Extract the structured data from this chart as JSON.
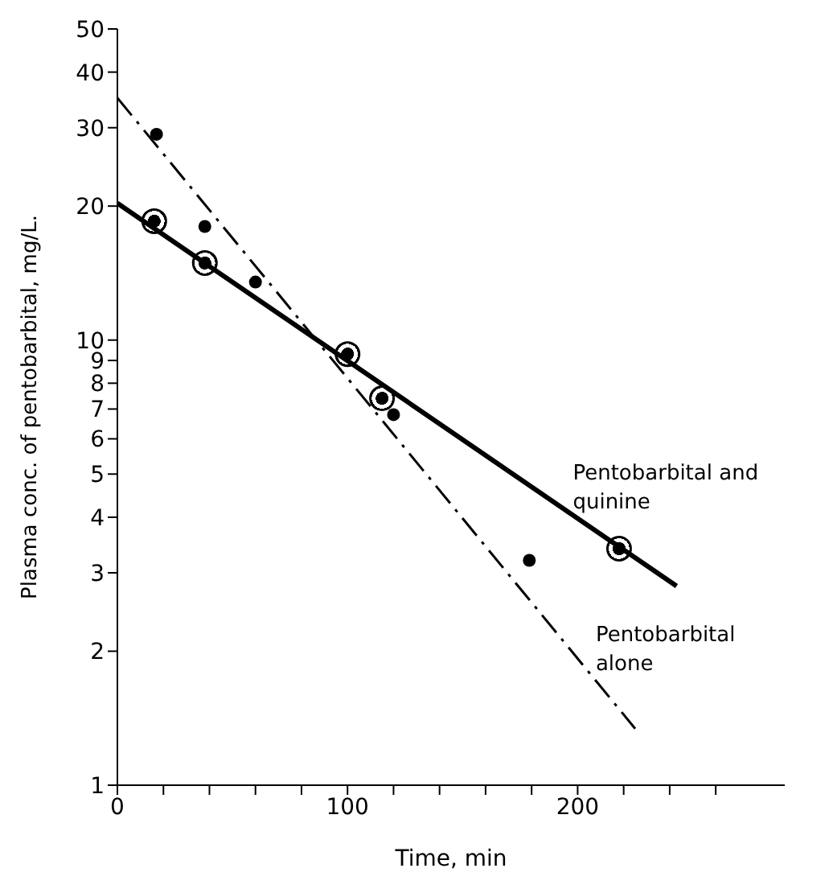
{
  "chart_data": {
    "type": "scatter",
    "xlabel": "Time, min",
    "ylabel": "Plasma conc. of pentobarbital, mg/L.",
    "xlim": [
      0,
      290
    ],
    "ylim": [
      1,
      50
    ],
    "log": "y",
    "xticks": [
      0,
      {
        "value": 20,
        "label": null
      },
      {
        "value": 40,
        "label": null
      },
      {
        "value": 60,
        "label": null
      },
      {
        "value": 80,
        "label": null
      },
      100,
      {
        "value": 120,
        "label": null
      },
      {
        "value": 140,
        "label": null
      },
      {
        "value": 160,
        "label": null
      },
      {
        "value": 180,
        "label": null
      },
      200,
      {
        "value": 220,
        "label": null
      },
      {
        "value": 240,
        "label": null
      },
      {
        "value": 260,
        "label": null
      }
    ],
    "yticks": [
      1,
      2,
      3,
      4,
      5,
      6,
      7,
      8,
      9,
      10,
      20,
      30,
      40,
      50
    ],
    "marker": "circle",
    "series": [
      {
        "color": "#000000",
        "x": [
          16,
          38,
          100,
          115,
          218
        ],
        "values": [
          18.5,
          14.9,
          9.3,
          7.4,
          3.4
        ]
      },
      {
        "color": "#000000",
        "x": [
          17,
          38,
          60,
          120,
          179
        ],
        "values": [
          29,
          18,
          13.5,
          6.8,
          3.2
        ]
      },
      {
        "type": "line",
        "name": "Pentobarbital and quinine",
        "color": "#000000",
        "line_style": "solid",
        "marker": "none",
        "x": [
          0,
          243
        ],
        "values": [
          20.3,
          2.8
        ]
      },
      {
        "type": "line",
        "name": "Pentobarbital alone",
        "color": "#000000",
        "line_style": "dashed",
        "marker": "none",
        "x": [
          0,
          225
        ],
        "values": [
          35,
          1.34
        ]
      }
    ]
  }
}
